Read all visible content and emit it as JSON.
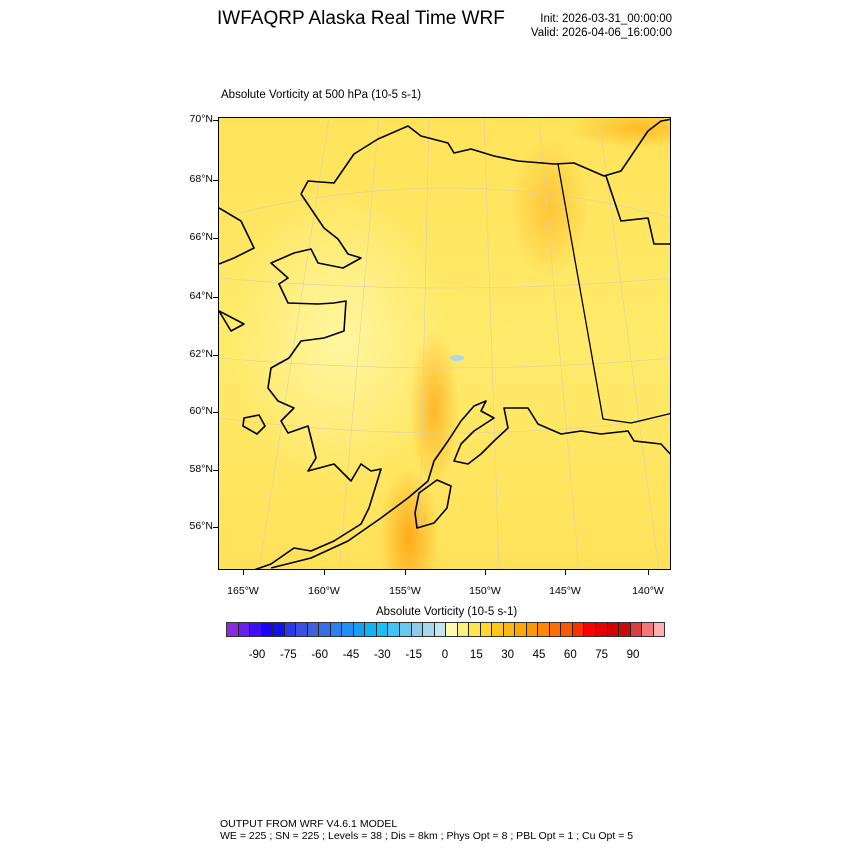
{
  "header": {
    "title": "IWFAQRP Alaska Real Time WRF",
    "init": "Init: 2026-03-31_00:00:00",
    "valid": "Valid: 2026-04-06_16:00:00"
  },
  "map": {
    "subtitle": "Absolute Vorticity at 500 hPa   (10-5 s-1)",
    "lat_labels": [
      "70°N",
      "68°N",
      "66°N",
      "64°N",
      "62°N",
      "60°N",
      "58°N",
      "56°N"
    ],
    "lon_labels": [
      "165°W",
      "160°W",
      "155°W",
      "150°W",
      "145°W",
      "140°W"
    ],
    "field": "absolute vorticity, mostly 0–45 (yellow to orange), max streak along Alaska Range / Kodiak"
  },
  "colorbar": {
    "title": "Absolute Vorticity  (10-5 s-1)",
    "labels": [
      "-90",
      "-75",
      "-60",
      "-45",
      "-30",
      "-15",
      "0",
      "15",
      "30",
      "45",
      "60",
      "75",
      "90"
    ],
    "colors": [
      "#8a2be2",
      "#6a1ef0",
      "#4010f5",
      "#1a00ff",
      "#1010f0",
      "#2a3ae8",
      "#3a50e0",
      "#4060dc",
      "#3a6ee8",
      "#2a80f0",
      "#2090f5",
      "#16a0f5",
      "#10b4f5",
      "#18c0f5",
      "#40c4f5",
      "#68c8f0",
      "#8ccbec",
      "#a4d8ee",
      "#c4e6f4",
      "#fffcb0",
      "#fff080",
      "#ffe650",
      "#ffd830",
      "#ffc818",
      "#ffb810",
      "#ffa808",
      "#ff9800",
      "#ff8800",
      "#ff7000",
      "#ff5800",
      "#ff3000",
      "#ff0000",
      "#e80000",
      "#d80000",
      "#cc0808",
      "#d84040",
      "#f07878",
      "#ffb0b0"
    ]
  },
  "footer": {
    "line1": "OUTPUT FROM WRF V4.6.1 MODEL",
    "line2": "WE = 225 ; SN = 225 ; Levels = 38 ; Dis = 8km ; Phys Opt = 8 ; PBL Opt = 1 ; Cu Opt = 5"
  }
}
